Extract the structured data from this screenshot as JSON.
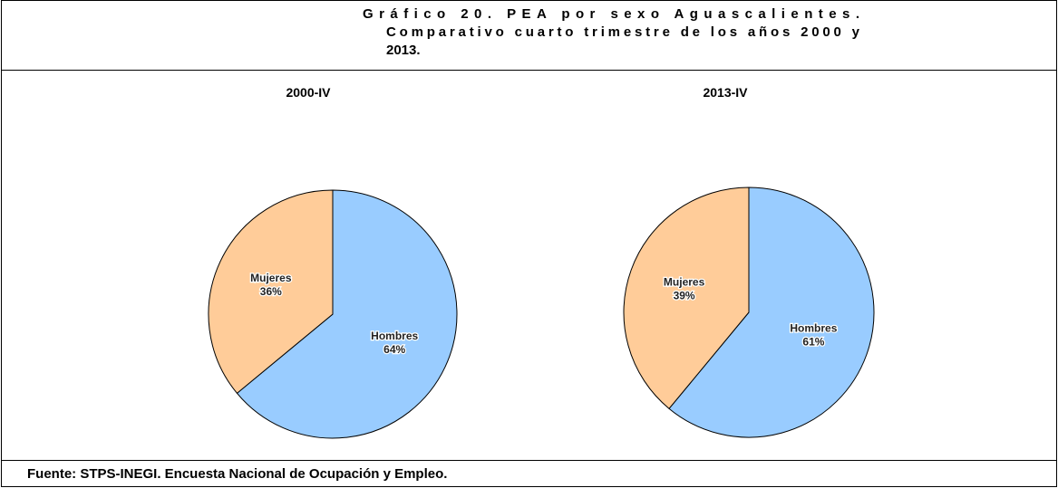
{
  "title": [
    "Gráfico 20.  PEA  por  sexo  Aguascalientes.",
    "Comparativo cuarto trimestre de los años 2000 y",
    "2013."
  ],
  "chart_data": [
    {
      "type": "pie",
      "title": "2000-IV",
      "categories": [
        "Hombres",
        "Mujeres"
      ],
      "values": [
        64,
        36
      ],
      "value_labels": [
        "64%",
        "36%"
      ],
      "colors": [
        "#99ccff",
        "#ffcc99"
      ]
    },
    {
      "type": "pie",
      "title": "2013-IV",
      "categories": [
        "Hombres",
        "Mujeres"
      ],
      "values": [
        61,
        39
      ],
      "value_labels": [
        "61%",
        "39%"
      ],
      "colors": [
        "#99ccff",
        "#ffcc99"
      ]
    }
  ],
  "source": "Fuente: STPS-INEGI. Encuesta Nacional de Ocupación y Empleo."
}
